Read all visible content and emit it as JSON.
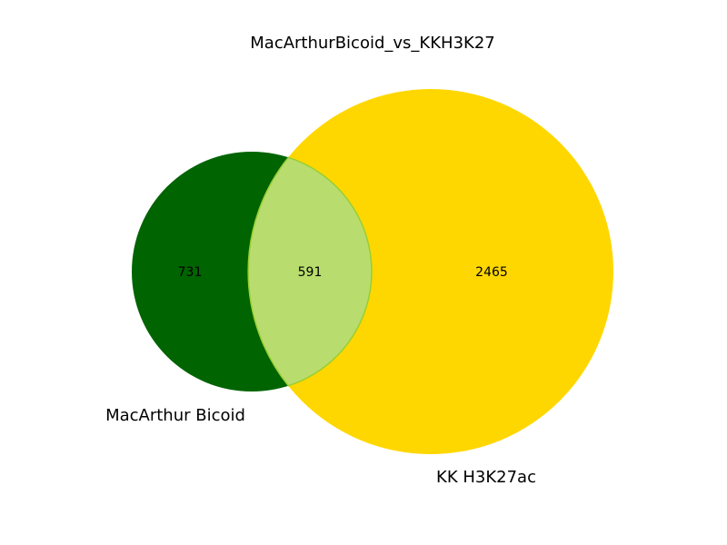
{
  "title": "MacArthurBicoid_vs_KKH3K27",
  "sets": [
    {
      "name": "MacArthur Bicoid",
      "only_count": "731",
      "color": "#006400"
    },
    {
      "name": "KK H3K27ac",
      "only_count": "2465",
      "color": "#ffd700"
    }
  ],
  "intersection": {
    "count": "591",
    "color": "#b8dd6e",
    "edge_color": "#9acd32"
  }
}
